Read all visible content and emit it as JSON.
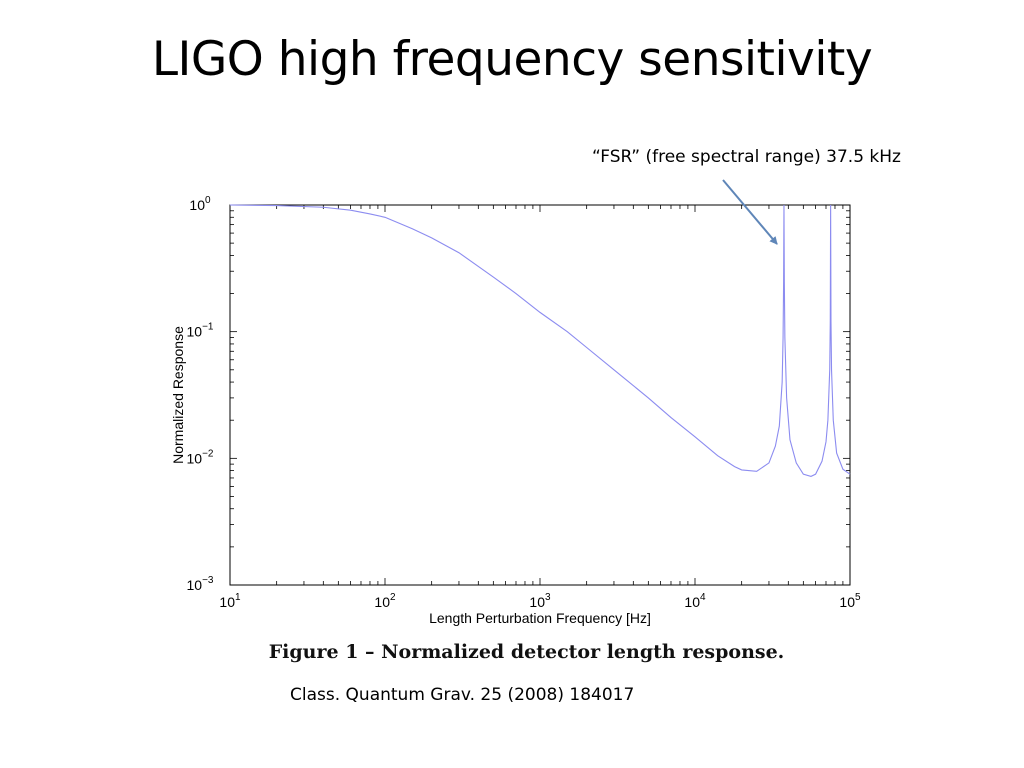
{
  "slide": {
    "title": "LIGO high frequency sensitivity",
    "annotation": "“FSR” (free spectral range) 37.5 kHz",
    "figure_caption": "Figure 1 – Normalized detector length response.",
    "citation": "Class. Quantum Grav. 25 (2008) 184017"
  },
  "colors": {
    "curve": "#8c8cf0",
    "arrow": "#5f86b8",
    "axis": "#000000"
  },
  "chart_data": {
    "type": "line",
    "title": "",
    "xlabel": "Length Perturbation Frequency [Hz]",
    "ylabel": "Normalized Response",
    "xscale": "log",
    "yscale": "log",
    "xlim": [
      10,
      100000
    ],
    "ylim": [
      0.001,
      1
    ],
    "grid": false,
    "x_ticks": [
      {
        "base": "10",
        "exp": "1",
        "value": 10
      },
      {
        "base": "10",
        "exp": "2",
        "value": 100
      },
      {
        "base": "10",
        "exp": "3",
        "value": 1000
      },
      {
        "base": "10",
        "exp": "4",
        "value": 10000
      },
      {
        "base": "10",
        "exp": "5",
        "value": 100000
      }
    ],
    "y_ticks": [
      {
        "base": "10",
        "exp": "0",
        "value": 1
      },
      {
        "base": "10",
        "exp": "−1",
        "value": 0.1
      },
      {
        "base": "10",
        "exp": "−2",
        "value": 0.01
      },
      {
        "base": "10",
        "exp": "−3",
        "value": 0.001
      }
    ],
    "series": [
      {
        "x": [
          10,
          20,
          40,
          60,
          80,
          100,
          150,
          200,
          300,
          500,
          700,
          1000,
          1500,
          2000,
          3000,
          5000,
          7000,
          10000,
          14000,
          18000,
          20000,
          25000,
          30000,
          33000,
          35000,
          36500,
          37000,
          37300,
          37500,
          37700,
          38000,
          39000,
          41000,
          45000,
          50000,
          56000,
          60000,
          66000,
          70000,
          72000,
          74000,
          74600,
          75000,
          75400,
          76000,
          78000,
          82000,
          90000,
          100000
        ],
        "y": [
          1,
          0.99,
          0.96,
          0.91,
          0.85,
          0.8,
          0.65,
          0.55,
          0.42,
          0.27,
          0.2,
          0.142,
          0.1,
          0.075,
          0.05,
          0.03,
          0.021,
          0.0148,
          0.0105,
          0.0086,
          0.0081,
          0.0079,
          0.0092,
          0.0125,
          0.018,
          0.04,
          0.09,
          0.25,
          1,
          0.25,
          0.09,
          0.03,
          0.014,
          0.0092,
          0.0075,
          0.0072,
          0.0075,
          0.0095,
          0.0135,
          0.02,
          0.05,
          0.12,
          1,
          0.12,
          0.05,
          0.02,
          0.011,
          0.0082,
          0.0075
        ]
      }
    ],
    "annotation_target": {
      "x": 37500,
      "y": 0.6
    }
  }
}
